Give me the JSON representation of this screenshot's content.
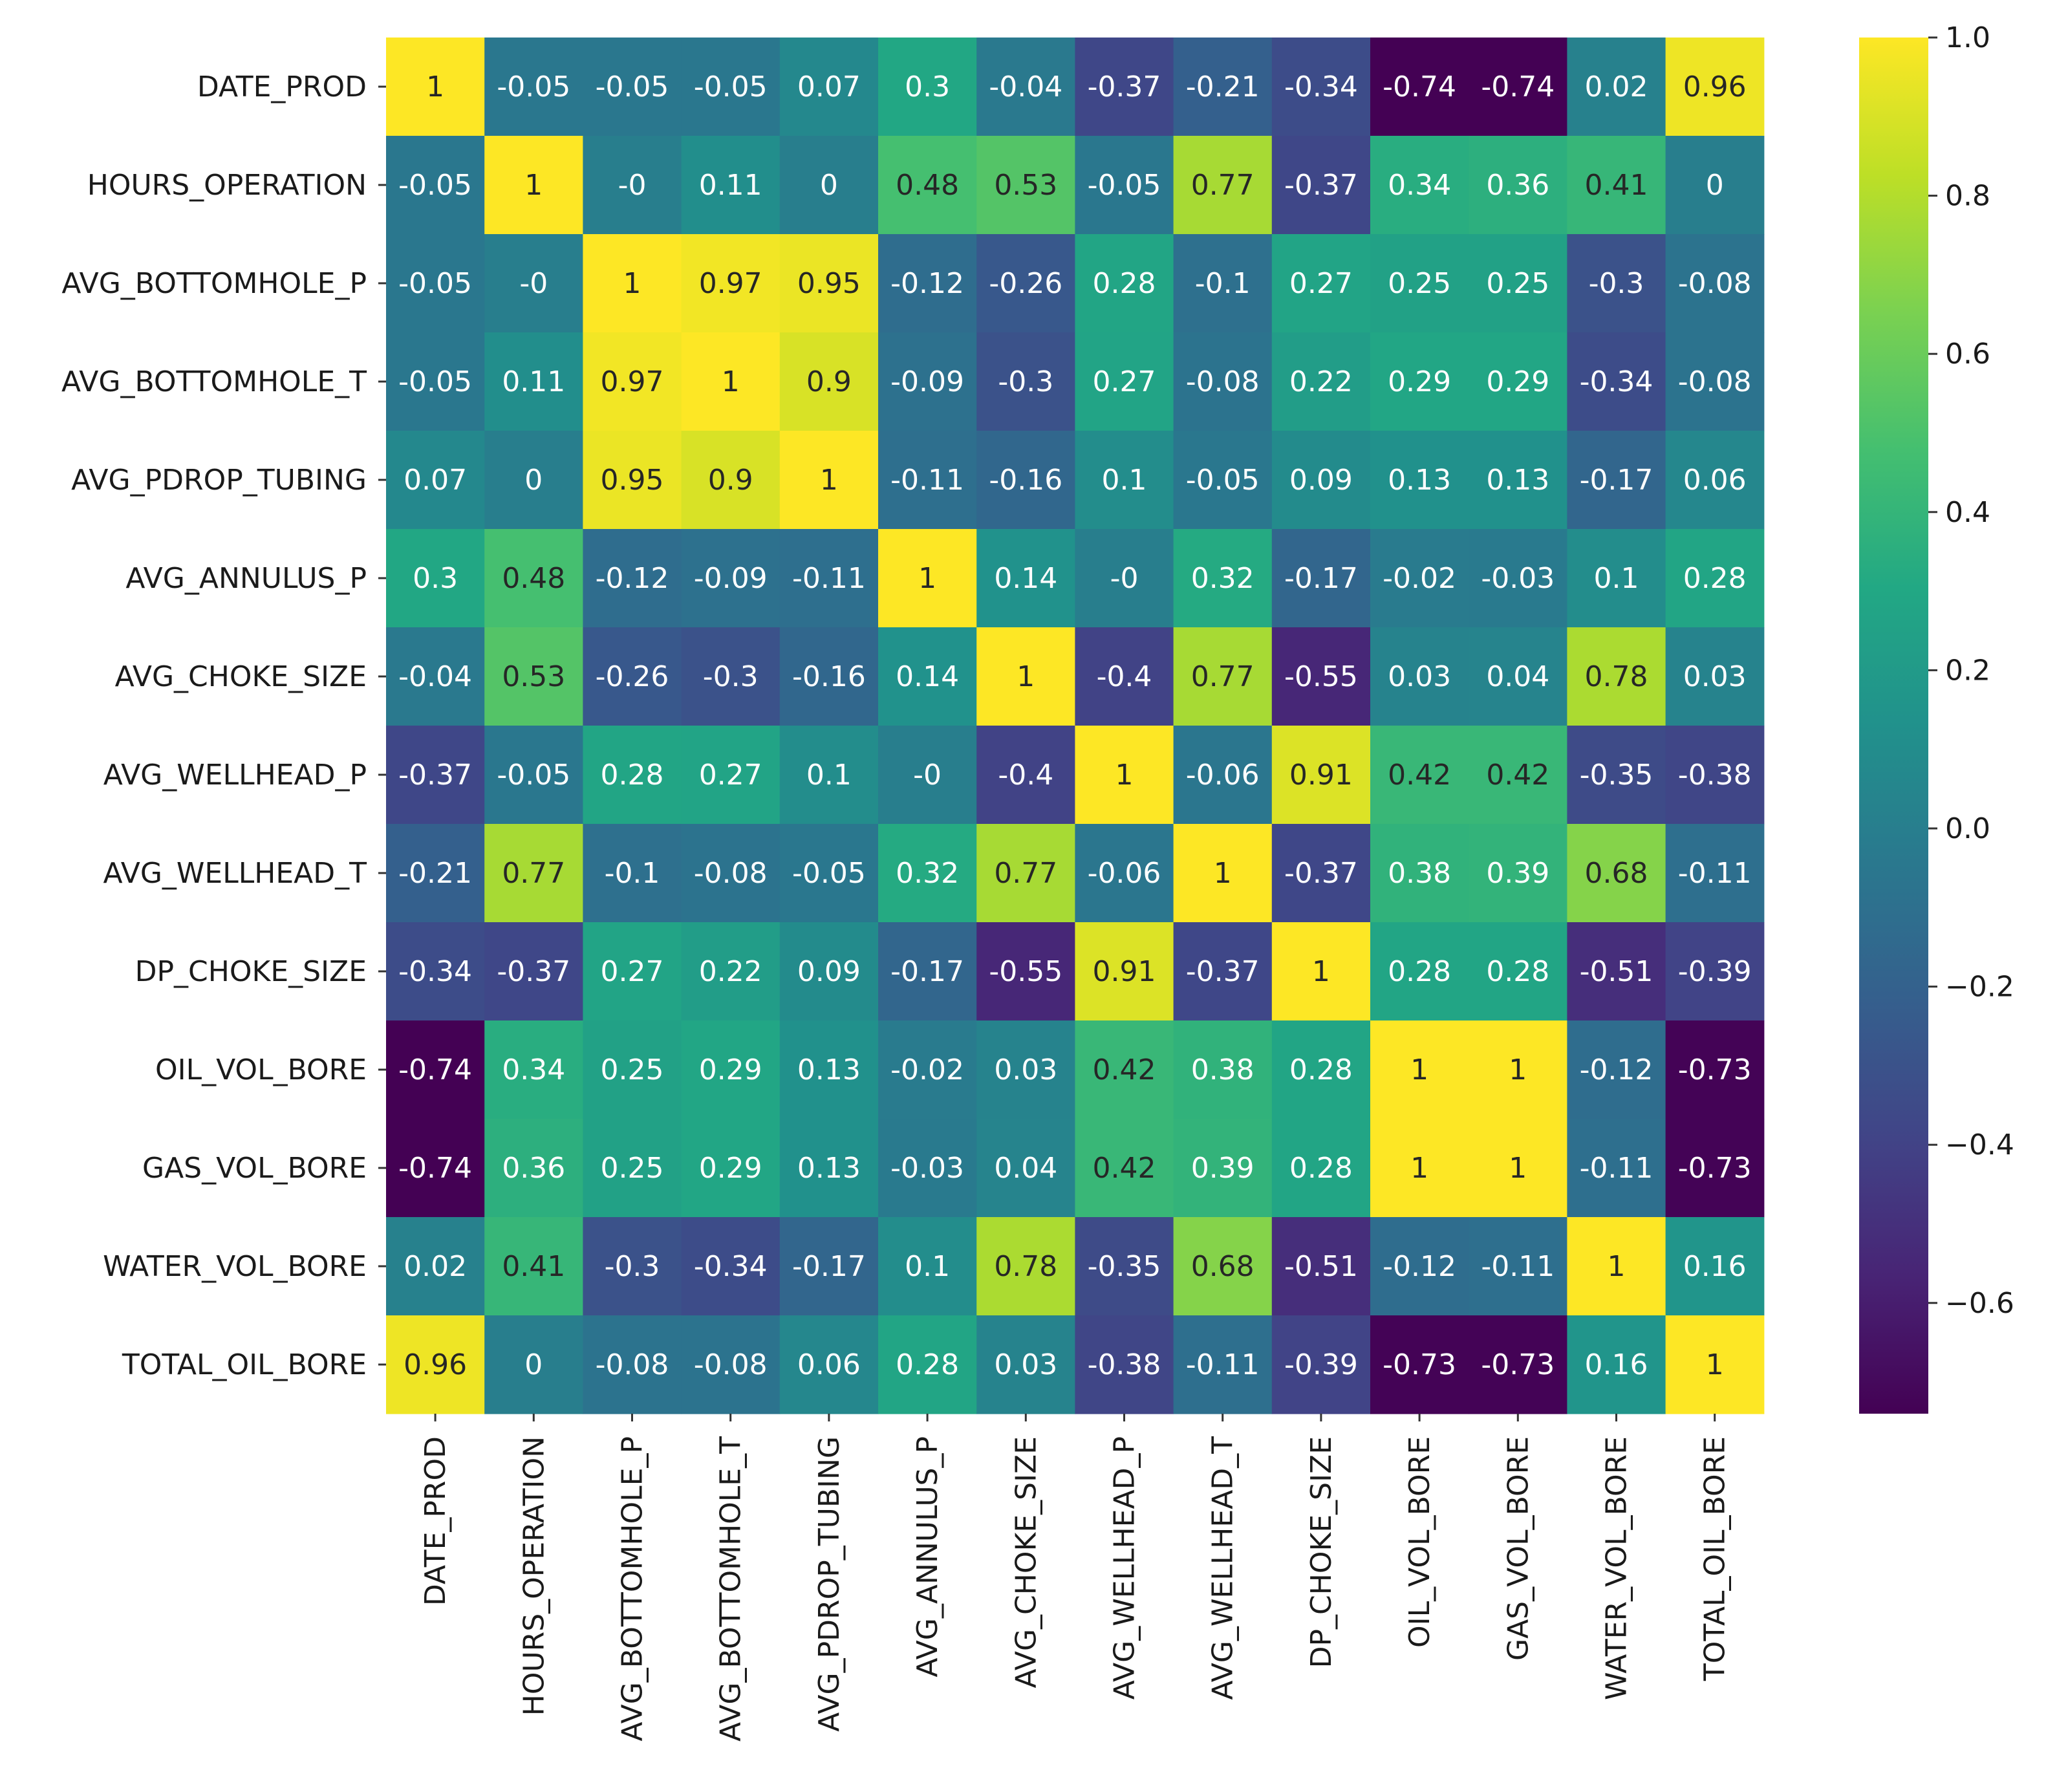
{
  "chart_data": {
    "type": "heatmap",
    "title": "",
    "colormap": "viridis",
    "vmin": -0.74,
    "vmax": 1.0,
    "labels": [
      "DATE_PROD",
      "HOURS_OPERATION",
      "AVG_BOTTOMHOLE_P",
      "AVG_BOTTOMHOLE_T",
      "AVG_PDROP_TUBING",
      "AVG_ANNULUS_P",
      "AVG_CHOKE_SIZE",
      "AVG_WELLHEAD_P",
      "AVG_WELLHEAD_T",
      "DP_CHOKE_SIZE",
      "OIL_VOL_BORE",
      "GAS_VOL_BORE",
      "WATER_VOL_BORE",
      "TOTAL_OIL_BORE"
    ],
    "matrix": [
      [
        1,
        -0.05,
        -0.05,
        -0.05,
        0.07,
        0.3,
        -0.04,
        -0.37,
        -0.21,
        -0.34,
        -0.74,
        -0.74,
        0.02,
        0.96
      ],
      [
        -0.05,
        1,
        0,
        0.11,
        0,
        0.48,
        0.53,
        -0.05,
        0.77,
        -0.37,
        0.34,
        0.36,
        0.41,
        0
      ],
      [
        -0.05,
        0,
        1,
        0.97,
        0.95,
        -0.12,
        -0.26,
        0.28,
        -0.1,
        0.27,
        0.25,
        0.25,
        -0.3,
        -0.08
      ],
      [
        -0.05,
        0.11,
        0.97,
        1,
        0.9,
        -0.09,
        -0.3,
        0.27,
        -0.08,
        0.22,
        0.29,
        0.29,
        -0.34,
        -0.08
      ],
      [
        0.07,
        0,
        0.95,
        0.9,
        1,
        -0.11,
        -0.16,
        0.1,
        -0.05,
        0.09,
        0.13,
        0.13,
        -0.17,
        0.06
      ],
      [
        0.3,
        0.48,
        -0.12,
        -0.09,
        -0.11,
        1,
        0.14,
        0,
        0.32,
        -0.17,
        -0.02,
        -0.03,
        0.1,
        0.28
      ],
      [
        -0.04,
        0.53,
        -0.26,
        -0.3,
        -0.16,
        0.14,
        1,
        -0.4,
        0.77,
        -0.55,
        0.03,
        0.04,
        0.78,
        0.03
      ],
      [
        -0.37,
        -0.05,
        0.28,
        0.27,
        0.1,
        0,
        -0.4,
        1,
        -0.06,
        0.91,
        0.42,
        0.42,
        -0.35,
        -0.38
      ],
      [
        -0.21,
        0.77,
        -0.1,
        -0.08,
        -0.05,
        0.32,
        0.77,
        -0.06,
        1,
        -0.37,
        0.38,
        0.39,
        0.68,
        -0.11
      ],
      [
        -0.34,
        -0.37,
        0.27,
        0.22,
        0.09,
        -0.17,
        -0.55,
        0.91,
        -0.37,
        1,
        0.28,
        0.28,
        -0.51,
        -0.39
      ],
      [
        -0.74,
        0.34,
        0.25,
        0.29,
        0.13,
        -0.02,
        0.03,
        0.42,
        0.38,
        0.28,
        1,
        1,
        -0.12,
        -0.73
      ],
      [
        -0.74,
        0.36,
        0.25,
        0.29,
        0.13,
        -0.03,
        0.04,
        0.42,
        0.39,
        0.28,
        1,
        1,
        -0.11,
        -0.73
      ],
      [
        0.02,
        0.41,
        -0.3,
        -0.34,
        -0.17,
        0.1,
        0.78,
        -0.35,
        0.68,
        -0.51,
        -0.12,
        -0.11,
        1,
        0.16
      ],
      [
        0.96,
        0,
        -0.08,
        -0.08,
        0.06,
        0.28,
        0.03,
        -0.38,
        -0.11,
        -0.39,
        -0.73,
        -0.73,
        0.16,
        1
      ]
    ],
    "display_values": [
      [
        "1",
        "-0.05",
        "-0.05",
        "-0.05",
        "0.07",
        "0.3",
        "-0.04",
        "-0.37",
        "-0.21",
        "-0.34",
        "-0.74",
        "-0.74",
        "0.02",
        "0.96"
      ],
      [
        "-0.05",
        "1",
        "-0",
        "0.11",
        "0",
        "0.48",
        "0.53",
        "-0.05",
        "0.77",
        "-0.37",
        "0.34",
        "0.36",
        "0.41",
        "0"
      ],
      [
        "-0.05",
        "-0",
        "1",
        "0.97",
        "0.95",
        "-0.12",
        "-0.26",
        "0.28",
        "-0.1",
        "0.27",
        "0.25",
        "0.25",
        "-0.3",
        "-0.08"
      ],
      [
        "-0.05",
        "0.11",
        "0.97",
        "1",
        "0.9",
        "-0.09",
        "-0.3",
        "0.27",
        "-0.08",
        "0.22",
        "0.29",
        "0.29",
        "-0.34",
        "-0.08"
      ],
      [
        "0.07",
        "0",
        "0.95",
        "0.9",
        "1",
        "-0.11",
        "-0.16",
        "0.1",
        "-0.05",
        "0.09",
        "0.13",
        "0.13",
        "-0.17",
        "0.06"
      ],
      [
        "0.3",
        "0.48",
        "-0.12",
        "-0.09",
        "-0.11",
        "1",
        "0.14",
        "-0",
        "0.32",
        "-0.17",
        "-0.02",
        "-0.03",
        "0.1",
        "0.28"
      ],
      [
        "-0.04",
        "0.53",
        "-0.26",
        "-0.3",
        "-0.16",
        "0.14",
        "1",
        "-0.4",
        "0.77",
        "-0.55",
        "0.03",
        "0.04",
        "0.78",
        "0.03"
      ],
      [
        "-0.37",
        "-0.05",
        "0.28",
        "0.27",
        "0.1",
        "-0",
        "-0.4",
        "1",
        "-0.06",
        "0.91",
        "0.42",
        "0.42",
        "-0.35",
        "-0.38"
      ],
      [
        "-0.21",
        "0.77",
        "-0.1",
        "-0.08",
        "-0.05",
        "0.32",
        "0.77",
        "-0.06",
        "1",
        "-0.37",
        "0.38",
        "0.39",
        "0.68",
        "-0.11"
      ],
      [
        "-0.34",
        "-0.37",
        "0.27",
        "0.22",
        "0.09",
        "-0.17",
        "-0.55",
        "0.91",
        "-0.37",
        "1",
        "0.28",
        "0.28",
        "-0.51",
        "-0.39"
      ],
      [
        "-0.74",
        "0.34",
        "0.25",
        "0.29",
        "0.13",
        "-0.02",
        "0.03",
        "0.42",
        "0.38",
        "0.28",
        "1",
        "1",
        "-0.12",
        "-0.73"
      ],
      [
        "-0.74",
        "0.36",
        "0.25",
        "0.29",
        "0.13",
        "-0.03",
        "0.04",
        "0.42",
        "0.39",
        "0.28",
        "1",
        "1",
        "-0.11",
        "-0.73"
      ],
      [
        "0.02",
        "0.41",
        "-0.3",
        "-0.34",
        "-0.17",
        "0.1",
        "0.78",
        "-0.35",
        "0.68",
        "-0.51",
        "-0.12",
        "-0.11",
        "1",
        "0.16"
      ],
      [
        "0.96",
        "0",
        "-0.08",
        "-0.08",
        "0.06",
        "0.28",
        "0.03",
        "-0.38",
        "-0.11",
        "-0.39",
        "-0.73",
        "-0.73",
        "0.16",
        "1"
      ]
    ],
    "colorbar": {
      "ticks": [
        1.0,
        0.8,
        0.6,
        0.4,
        0.2,
        0.0,
        -0.2,
        -0.4,
        -0.6
      ],
      "tick_labels": [
        "1.0",
        "0.8",
        "0.6",
        "0.4",
        "0.2",
        "0.0",
        "−0.2",
        "−0.4",
        "−0.6"
      ]
    }
  }
}
